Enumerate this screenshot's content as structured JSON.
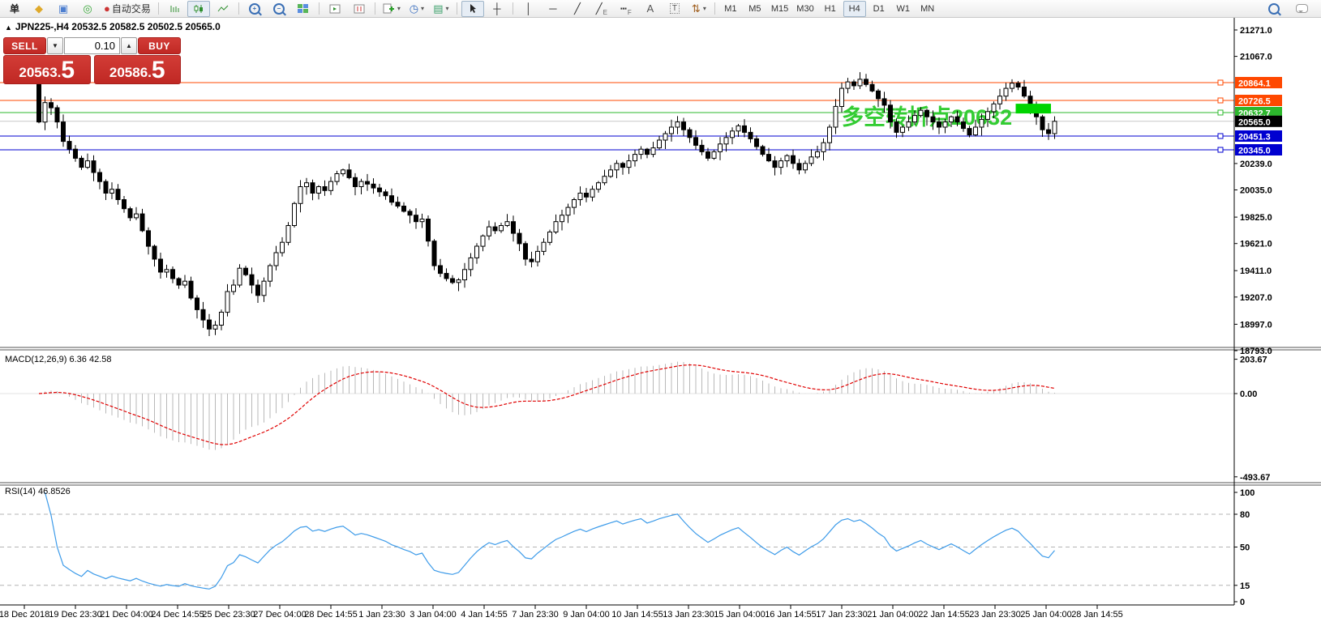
{
  "toolbar": {
    "active_timeframe": "H4",
    "items": [
      {
        "n": "new-order-button",
        "t": "text",
        "label": "单"
      },
      {
        "n": "package-icon",
        "t": "glyph",
        "g": "◆",
        "c": "#dfa92a"
      },
      {
        "n": "terminal-window-icon",
        "t": "glyph",
        "g": "▣",
        "c": "#4d7fd0"
      },
      {
        "n": "signal-icon",
        "t": "glyph",
        "g": "◎",
        "c": "#3aa83a"
      },
      {
        "n": "autotrade-button",
        "t": "glyph",
        "g": "●",
        "c": "#cc3333",
        "label": "自动交易"
      },
      {
        "t": "sep"
      },
      {
        "n": "bar-chart-button",
        "t": "svg",
        "k": "bars"
      },
      {
        "n": "candlestick-chart-button",
        "t": "svg",
        "k": "candles",
        "active": true
      },
      {
        "n": "line-chart-button",
        "t": "svg",
        "k": "line"
      },
      {
        "t": "sep"
      },
      {
        "n": "zoom-in-button",
        "t": "zoom",
        "sign": "+"
      },
      {
        "n": "zoom-out-button",
        "t": "zoom",
        "sign": "−"
      },
      {
        "n": "tile-windows-button",
        "t": "tiles"
      },
      {
        "t": "sep"
      },
      {
        "n": "auto-arrange-button",
        "t": "svg",
        "k": "arr1"
      },
      {
        "n": "chart-shift-button",
        "t": "svg",
        "k": "arr2"
      },
      {
        "t": "sep"
      },
      {
        "n": "indicators-button",
        "t": "svg",
        "k": "addind",
        "dd": true
      },
      {
        "n": "periods-button",
        "t": "glyph",
        "g": "◷",
        "c": "#3a6fc0",
        "dd": true
      },
      {
        "n": "templates-button",
        "t": "glyph",
        "g": "▤",
        "c": "#3aa06a",
        "dd": true
      },
      {
        "t": "sep"
      },
      {
        "n": "cursor-button",
        "t": "svg",
        "k": "cursor",
        "active": true
      },
      {
        "n": "crosshair-button",
        "t": "glyph",
        "g": "┼",
        "c": "#333"
      },
      {
        "t": "sep"
      },
      {
        "n": "vertical-line-button",
        "t": "glyph",
        "g": "│",
        "c": "#333"
      },
      {
        "n": "horizontal-line-button",
        "t": "glyph",
        "g": "─",
        "c": "#333"
      },
      {
        "n": "trendline-button",
        "t": "glyph",
        "g": "╱",
        "c": "#333"
      },
      {
        "n": "equidistant-channel-button",
        "t": "glyph",
        "g": "╱",
        "c": "#333",
        "sub": "E"
      },
      {
        "n": "fibonacci-button",
        "t": "glyph",
        "g": "┅",
        "c": "#333",
        "sub": "F"
      },
      {
        "n": "text-button",
        "t": "glyph",
        "g": "A",
        "c": "#555"
      },
      {
        "n": "text-label-button",
        "t": "glyph",
        "g": "T",
        "c": "#555",
        "boxed": true
      },
      {
        "n": "arrows-button",
        "t": "glyph",
        "g": "⇅",
        "c": "#a06020",
        "dd": true
      },
      {
        "t": "sep"
      },
      {
        "n": "timeframe-m1-button",
        "t": "tf",
        "label": "M1"
      },
      {
        "n": "timeframe-m5-button",
        "t": "tf",
        "label": "M5"
      },
      {
        "n": "timeframe-m15-button",
        "t": "tf",
        "label": "M15"
      },
      {
        "n": "timeframe-m30-button",
        "t": "tf",
        "label": "M30"
      },
      {
        "n": "timeframe-h1-button",
        "t": "tf",
        "label": "H1"
      },
      {
        "n": "timeframe-h4-button",
        "t": "tf",
        "label": "H4"
      },
      {
        "n": "timeframe-d1-button",
        "t": "tf",
        "label": "D1"
      },
      {
        "n": "timeframe-w1-button",
        "t": "tf",
        "label": "W1"
      },
      {
        "n": "timeframe-mn-button",
        "t": "tf",
        "label": "MN"
      }
    ],
    "right_items": [
      {
        "n": "search-button",
        "t": "zoom",
        "sign": ""
      },
      {
        "n": "chat-button",
        "t": "chat"
      }
    ]
  },
  "chart": {
    "collapse_arrow": "▲",
    "title": "JPN225-,H4  20532.5 20582.5 20502.5 20565.0"
  },
  "trade_panel": {
    "sell_label": "SELL",
    "buy_label": "BUY",
    "volume": "0.10",
    "sell_price_main": "20563",
    "sell_price_pips": "5",
    "buy_price_main": "20586",
    "buy_price_pips": "5"
  },
  "indicators": {
    "macd": {
      "label": "MACD(12,26,9)",
      "values": "6.36 42.58",
      "axis": [
        "203.67",
        "0.00",
        "-493.67"
      ],
      "hist_color": "#b8b8b8",
      "signal_color": "#e00000"
    },
    "rsi": {
      "label": "RSI(14)",
      "value": "46.8526",
      "axis": [
        "100",
        "80",
        "50",
        "15",
        "0"
      ],
      "dashed_levels": [
        80,
        50,
        15
      ],
      "line_color": "#3d9be9",
      "level_color": "#b4b4b4"
    }
  },
  "chart_data": {
    "type": "candlestick",
    "symbol": "JPN225-",
    "timeframe": "H4",
    "current_ohlc": {
      "open": 20532.5,
      "high": 20582.5,
      "low": 20502.5,
      "close": 20565.0
    },
    "first_open": 20880,
    "closes": [
      20560,
      20710,
      20670,
      20560,
      20410,
      20350,
      20280,
      20210,
      20260,
      20170,
      20100,
      20010,
      20040,
      19960,
      19890,
      19820,
      19850,
      19720,
      19600,
      19500,
      19400,
      19420,
      19350,
      19300,
      19330,
      19200,
      19110,
      19030,
      18960,
      18990,
      19090,
      19250,
      19300,
      19430,
      19380,
      19300,
      19220,
      19330,
      19450,
      19550,
      19630,
      19760,
      19930,
      20060,
      20090,
      20010,
      20060,
      20030,
      20100,
      20160,
      20190,
      20130,
      20060,
      20100,
      20080,
      20050,
      20020,
      19990,
      19940,
      19910,
      19870,
      19840,
      19790,
      19810,
      19640,
      19450,
      19390,
      19350,
      19320,
      19340,
      19420,
      19510,
      19600,
      19680,
      19750,
      19720,
      19760,
      19790,
      19700,
      19620,
      19500,
      19480,
      19560,
      19630,
      19710,
      19790,
      19840,
      19900,
      19960,
      20010,
      19980,
      20040,
      20090,
      20140,
      20190,
      20240,
      20210,
      20260,
      20310,
      20350,
      20310,
      20360,
      20420,
      20470,
      20520,
      20560,
      20500,
      20440,
      20380,
      20330,
      20280,
      20330,
      20390,
      20440,
      20490,
      20530,
      20480,
      20430,
      20370,
      20310,
      20260,
      20210,
      20260,
      20300,
      20240,
      20190,
      20240,
      20290,
      20330,
      20400,
      20520,
      20680,
      20820,
      20870,
      20840,
      20890,
      20850,
      20800,
      20740,
      20690,
      20560,
      20480,
      20520,
      20560,
      20610,
      20650,
      20600,
      20560,
      20520,
      20560,
      20600,
      20560,
      20510,
      20460,
      20520,
      20580,
      20640,
      20700,
      20760,
      20820,
      20860,
      20830,
      20760,
      20690,
      20600,
      20500,
      20470,
      20565
    ],
    "y_ticks": [
      "21271.0",
      "21067.0",
      "20239.0",
      "20035.0",
      "19825.0",
      "19621.0",
      "19411.0",
      "19207.0",
      "18997.0",
      "18793.0"
    ],
    "levels": [
      {
        "price": "20864.1",
        "line_color": "#ff4800",
        "badge_color": "#ff4800",
        "handle": true
      },
      {
        "price": "20726.5",
        "line_color": "#ff4800",
        "badge_color": "#ff4800",
        "handle": true
      },
      {
        "price": "20632.7",
        "line_color": "#2db82d",
        "badge_color": "#2db82d",
        "handle": true
      },
      {
        "price": "20565.0",
        "line_color": "#c8c8c8",
        "badge_color": "#000000",
        "handle": false
      },
      {
        "price": "20451.3",
        "line_color": "#0000d0",
        "badge_color": "#0000d0",
        "handle": true
      },
      {
        "price": "20345.0",
        "line_color": "#0000d0",
        "badge_color": "#0000d0",
        "handle": true
      }
    ],
    "annotation": {
      "text": "多空转折点20632",
      "color": "#33cc33",
      "x": 1038,
      "y": 154
    },
    "highlight_rect": {
      "from_index": 161,
      "to_index": 166,
      "top_price": 20701,
      "bottom_price": 20626,
      "color": "#00d400"
    },
    "x_labels": [
      "18 Dec 2018",
      "19 Dec 23:30",
      "21 Dec 04:00",
      "24 Dec 14:55",
      "25 Dec 23:30",
      "27 Dec 04:00",
      "28 Dec 14:55",
      "1 Jan 23:30",
      "3 Jan 04:00",
      "4 Jan 14:55",
      "7 Jan 23:30",
      "9 Jan 04:00",
      "10 Jan 14:55",
      "13 Jan 23:30",
      "15 Jan 04:00",
      "16 Jan 14:55",
      "17 Jan 23:30",
      "21 Jan 04:00",
      "22 Jan 14:55",
      "23 Jan 23:30",
      "25 Jan 04:00",
      "28 Jan 14:55"
    ]
  }
}
